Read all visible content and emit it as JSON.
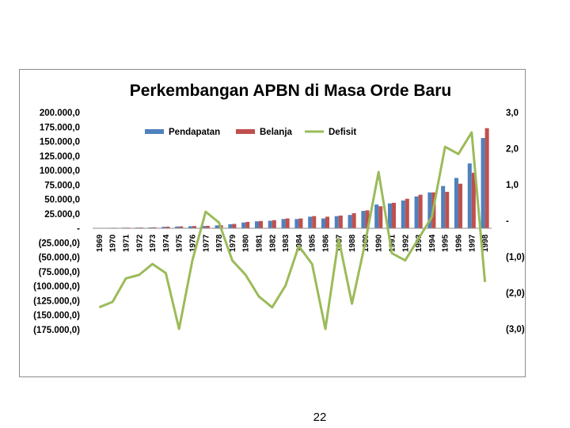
{
  "page": {
    "number": "22"
  },
  "chart_data": {
    "type": "bar+line",
    "title": "Perkembangan APBN di Masa Orde Baru",
    "categories": [
      "1969",
      "1970",
      "1971",
      "1972",
      "1973",
      "1974",
      "1975",
      "1976",
      "1977",
      "1978",
      "1979",
      "1980",
      "1981",
      "1982",
      "1983",
      "1984",
      "1985",
      "1986",
      "1987",
      "1988",
      "1989",
      "1990",
      "1991",
      "1992",
      "1993",
      "1994",
      "1995",
      "1996",
      "1997",
      "1998"
    ],
    "series": [
      {
        "name": "Pendapatan",
        "type": "bar",
        "axis": "left",
        "color": "#4f81bd",
        "values": [
          500,
          800,
          1000,
          1200,
          1500,
          2500,
          3000,
          3500,
          4000,
          5000,
          7000,
          10000,
          12000,
          13000,
          16000,
          16000,
          20000,
          17000,
          21000,
          23000,
          30000,
          41000,
          43000,
          48000,
          55000,
          62000,
          73000,
          87000,
          112000,
          156000
        ]
      },
      {
        "name": "Belanja",
        "type": "bar",
        "axis": "left",
        "color": "#c0504d",
        "values": [
          600,
          900,
          1100,
          1300,
          1700,
          2800,
          3300,
          3800,
          4200,
          5300,
          7500,
          11000,
          12500,
          14000,
          17000,
          17000,
          21000,
          20000,
          22000,
          26000,
          31000,
          38000,
          44000,
          51000,
          58000,
          62000,
          63000,
          77000,
          96000,
          173000
        ]
      },
      {
        "name": "Defisit",
        "type": "line",
        "axis": "right",
        "color": "#9bbb59",
        "values": [
          -2.4,
          -2.25,
          -1.6,
          -1.5,
          -1.2,
          -1.45,
          -3.0,
          -1.1,
          0.25,
          -0.05,
          -1.1,
          -1.5,
          -2.1,
          -2.4,
          -1.8,
          -0.7,
          -1.2,
          -3.0,
          -0.5,
          -2.3,
          -0.6,
          1.35,
          -0.9,
          -1.1,
          -0.5,
          0.1,
          2.05,
          1.85,
          2.45,
          -1.7
        ]
      }
    ],
    "left_axis": {
      "min": -175000,
      "max": 200000,
      "ticks": [
        {
          "value": 200000,
          "label": "200.000,0"
        },
        {
          "value": 175000,
          "label": "175.000,0"
        },
        {
          "value": 150000,
          "label": "150.000,0"
        },
        {
          "value": 125000,
          "label": "125.000,0"
        },
        {
          "value": 100000,
          "label": "100.000,0"
        },
        {
          "value": 75000,
          "label": "75.000,0"
        },
        {
          "value": 50000,
          "label": "50.000,0"
        },
        {
          "value": 25000,
          "label": "25.000,0"
        },
        {
          "value": 0,
          "label": "-"
        },
        {
          "value": -25000,
          "label": "(25.000,0)"
        },
        {
          "value": -50000,
          "label": "(50.000,0)"
        },
        {
          "value": -75000,
          "label": "(75.000,0)"
        },
        {
          "value": -100000,
          "label": "(100.000,0)"
        },
        {
          "value": -125000,
          "label": "(125.000,0)"
        },
        {
          "value": -150000,
          "label": "(150.000,0)"
        },
        {
          "value": -175000,
          "label": "(175.000,0)"
        }
      ]
    },
    "right_axis": {
      "min": -3,
      "max": 3,
      "ticks": [
        {
          "value": 3,
          "label": "3,0"
        },
        {
          "value": 2,
          "label": "2,0"
        },
        {
          "value": 1,
          "label": "1,0"
        },
        {
          "value": 0,
          "label": "-"
        },
        {
          "value": -1,
          "label": "(1,0)"
        },
        {
          "value": -2,
          "label": "(2,0)"
        },
        {
          "value": -3,
          "label": "(3,0)"
        }
      ]
    },
    "legend": {
      "position": "top",
      "entries": [
        "Pendapatan",
        "Belanja",
        "Defisit"
      ]
    },
    "grid": false
  }
}
